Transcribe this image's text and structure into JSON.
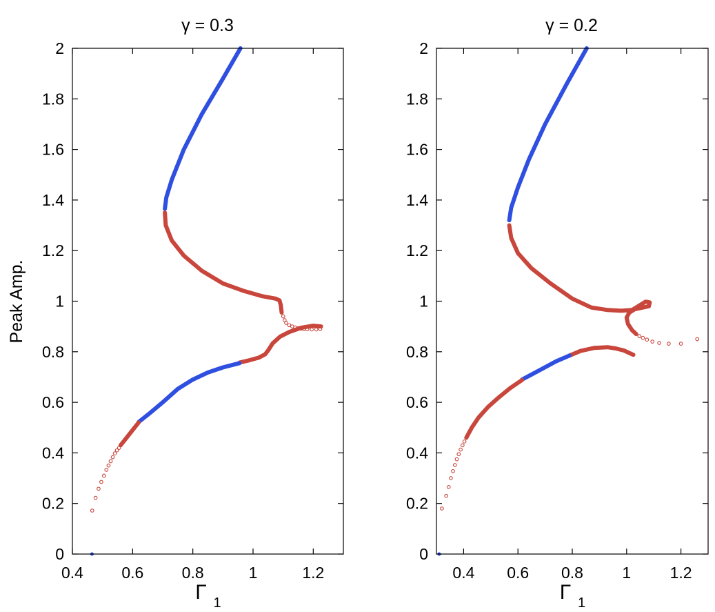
{
  "chart_data": [
    {
      "type": "scatter",
      "title": "γ = 0.3",
      "ylabel": "Peak Amp.",
      "xlabel": "Γ",
      "xlabel_subscript": "1",
      "xlim": [
        0.4,
        1.3
      ],
      "ylim": [
        0,
        2
      ],
      "xticks": [
        "0.4",
        "0.6",
        "0.8",
        "1",
        "1.2"
      ],
      "yticks": [
        "0",
        "0.2",
        "0.4",
        "0.6",
        "0.8",
        "1",
        "1.2",
        "1.4",
        "1.6",
        "1.8",
        "2"
      ],
      "grid": false,
      "colors": {
        "stable": "#2f4fe0",
        "unstable": "#c8463c"
      },
      "series": [
        {
          "style": "stable",
          "points": [
            [
              0.958,
              2.0
            ],
            [
              0.9,
              1.88
            ],
            [
              0.83,
              1.74
            ],
            [
              0.77,
              1.6
            ],
            [
              0.73,
              1.48
            ],
            [
              0.712,
              1.41
            ],
            [
              0.707,
              1.365
            ]
          ]
        },
        {
          "style": "unstable",
          "points": [
            [
              0.707,
              1.35
            ],
            [
              0.71,
              1.3
            ],
            [
              0.73,
              1.24
            ],
            [
              0.77,
              1.18
            ],
            [
              0.83,
              1.12
            ],
            [
              0.9,
              1.07
            ],
            [
              0.97,
              1.04
            ],
            [
              1.03,
              1.02
            ],
            [
              1.075,
              1.01
            ],
            [
              1.088,
              1.003
            ],
            [
              1.092,
              0.985
            ],
            [
              1.095,
              0.955
            ]
          ]
        },
        {
          "style": "unstable-markers",
          "points": [
            [
              1.1,
              0.94
            ],
            [
              1.105,
              0.925
            ],
            [
              1.11,
              0.914
            ],
            [
              1.12,
              0.905
            ],
            [
              1.13,
              0.9
            ],
            [
              1.14,
              0.896
            ],
            [
              1.15,
              0.893
            ],
            [
              1.16,
              0.891
            ],
            [
              1.17,
              0.89
            ],
            [
              1.18,
              0.889
            ],
            [
              1.195,
              0.888
            ],
            [
              1.21,
              0.888
            ],
            [
              1.223,
              0.89
            ]
          ]
        },
        {
          "style": "unstable",
          "points": [
            [
              1.226,
              0.9
            ],
            [
              1.2,
              0.903
            ],
            [
              1.16,
              0.895
            ],
            [
              1.12,
              0.878
            ],
            [
              1.09,
              0.86
            ],
            [
              1.065,
              0.833
            ],
            [
              1.05,
              0.805
            ],
            [
              1.04,
              0.79
            ],
            [
              1.02,
              0.777
            ],
            [
              0.99,
              0.767
            ],
            [
              0.955,
              0.757
            ]
          ]
        },
        {
          "style": "stable",
          "points": [
            [
              0.955,
              0.755
            ],
            [
              0.9,
              0.738
            ],
            [
              0.85,
              0.718
            ],
            [
              0.8,
              0.69
            ],
            [
              0.75,
              0.653
            ],
            [
              0.7,
              0.6
            ],
            [
              0.66,
              0.56
            ],
            [
              0.62,
              0.522
            ]
          ]
        },
        {
          "style": "unstable",
          "points": [
            [
              0.62,
              0.52
            ],
            [
              0.6,
              0.49
            ],
            [
              0.58,
              0.46
            ],
            [
              0.56,
              0.43
            ]
          ]
        },
        {
          "style": "unstable-markers",
          "points": [
            [
              0.555,
              0.42
            ],
            [
              0.548,
              0.41
            ],
            [
              0.541,
              0.398
            ],
            [
              0.534,
              0.383
            ],
            [
              0.527,
              0.367
            ],
            [
              0.52,
              0.35
            ],
            [
              0.513,
              0.333
            ],
            [
              0.505,
              0.31
            ],
            [
              0.496,
              0.285
            ],
            [
              0.487,
              0.258
            ],
            [
              0.477,
              0.222
            ],
            [
              0.466,
              0.172
            ]
          ]
        },
        {
          "style": "stable-marker",
          "points": [
            [
              0.465,
              0.0
            ]
          ]
        }
      ]
    },
    {
      "type": "scatter",
      "title": "γ = 0.2",
      "ylabel": "",
      "xlabel": "Γ",
      "xlabel_subscript": "1",
      "xlim": [
        0.3,
        1.3
      ],
      "ylim": [
        0,
        2
      ],
      "xticks": [
        "0.4",
        "0.6",
        "0.8",
        "1",
        "1.2"
      ],
      "yticks": [
        "0",
        "0.2",
        "0.4",
        "0.6",
        "0.8",
        "1",
        "1.2",
        "1.4",
        "1.6",
        "1.8",
        "2"
      ],
      "grid": false,
      "colors": {
        "stable": "#2f4fe0",
        "unstable": "#c8463c"
      },
      "series": [
        {
          "style": "stable",
          "points": [
            [
              0.853,
              2.0
            ],
            [
              0.78,
              1.86
            ],
            [
              0.7,
              1.7
            ],
            [
              0.64,
              1.56
            ],
            [
              0.6,
              1.45
            ],
            [
              0.575,
              1.37
            ],
            [
              0.568,
              1.32
            ]
          ]
        },
        {
          "style": "unstable",
          "points": [
            [
              0.568,
              1.3
            ],
            [
              0.575,
              1.25
            ],
            [
              0.6,
              1.19
            ],
            [
              0.65,
              1.13
            ],
            [
              0.72,
              1.07
            ],
            [
              0.8,
              1.01
            ],
            [
              0.87,
              0.975
            ],
            [
              0.93,
              0.965
            ],
            [
              0.98,
              0.962
            ],
            [
              1.02,
              0.965
            ],
            [
              1.05,
              0.985
            ],
            [
              1.07,
              0.998
            ],
            [
              1.085,
              0.995
            ],
            [
              1.082,
              0.98
            ],
            [
              1.06,
              0.975
            ],
            [
              1.03,
              0.968
            ],
            [
              1.01,
              0.955
            ],
            [
              1.0,
              0.935
            ],
            [
              1.005,
              0.91
            ],
            [
              1.02,
              0.885
            ],
            [
              1.035,
              0.87
            ]
          ]
        },
        {
          "style": "unstable-markers",
          "points": [
            [
              1.047,
              0.862
            ],
            [
              1.06,
              0.855
            ],
            [
              1.075,
              0.848
            ],
            [
              1.095,
              0.84
            ],
            [
              1.12,
              0.835
            ],
            [
              1.155,
              0.832
            ],
            [
              1.2,
              0.832
            ],
            [
              1.26,
              0.85
            ]
          ]
        },
        {
          "style": "unstable",
          "points": [
            [
              1.025,
              0.788
            ],
            [
              1.01,
              0.795
            ],
            [
              0.99,
              0.805
            ],
            [
              0.96,
              0.813
            ],
            [
              0.93,
              0.818
            ],
            [
              0.88,
              0.815
            ],
            [
              0.83,
              0.803
            ],
            [
              0.79,
              0.785
            ]
          ]
        },
        {
          "style": "stable",
          "points": [
            [
              0.79,
              0.785
            ],
            [
              0.74,
              0.762
            ],
            [
              0.69,
              0.733
            ],
            [
              0.65,
              0.71
            ],
            [
              0.615,
              0.69
            ]
          ]
        },
        {
          "style": "unstable",
          "points": [
            [
              0.615,
              0.688
            ],
            [
              0.57,
              0.655
            ],
            [
              0.53,
              0.62
            ],
            [
              0.49,
              0.582
            ],
            [
              0.455,
              0.54
            ],
            [
              0.43,
              0.5
            ],
            [
              0.41,
              0.46
            ]
          ]
        },
        {
          "style": "unstable-markers",
          "points": [
            [
              0.403,
              0.445
            ],
            [
              0.396,
              0.43
            ],
            [
              0.389,
              0.413
            ],
            [
              0.382,
              0.395
            ],
            [
              0.375,
              0.375
            ],
            [
              0.368,
              0.352
            ],
            [
              0.361,
              0.328
            ],
            [
              0.353,
              0.3
            ],
            [
              0.345,
              0.265
            ],
            [
              0.336,
              0.23
            ],
            [
              0.32,
              0.18
            ]
          ]
        },
        {
          "style": "stable-marker",
          "points": [
            [
              0.31,
              0.0
            ]
          ]
        }
      ]
    }
  ]
}
